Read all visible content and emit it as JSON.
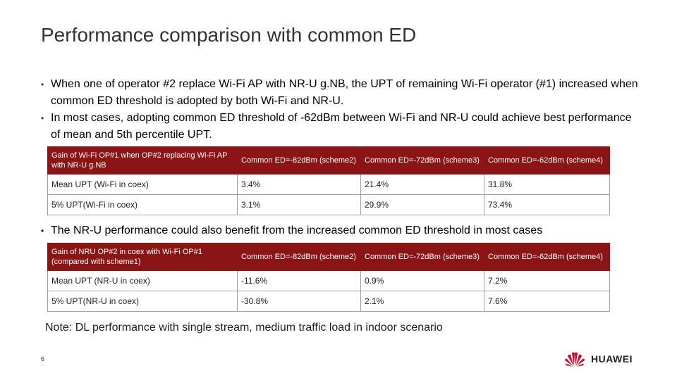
{
  "title": "Performance comparison with common ED",
  "bullets": [
    "When one of operator #2 replace Wi-Fi AP with NR-U g.NB, the UPT of remaining Wi-Fi operator (#1) increased when common ED threshold is adopted by both Wi-Fi and NR-U.",
    "In most cases, adopting common ED threshold of -62dBm between Wi-Fi and NR-U could achieve best performance of mean and 5th percentile UPT."
  ],
  "table1": {
    "headers": [
      "Gain of Wi-Fi OP#1 when OP#2 replacing Wi-Fi AP with NR-U g.NB",
      "Common ED=-82dBm (scheme2)",
      "Common ED=-72dBm (scheme3)",
      "Common ED=-62dBm (scheme4)"
    ],
    "rows": [
      [
        "Mean UPT (Wi-Fi in coex)",
        "3.4%",
        "21.4%",
        "31.8%"
      ],
      [
        "5% UPT(Wi-Fi in coex)",
        "3.1%",
        "29.9%",
        "73.4%"
      ]
    ]
  },
  "bullet3": "The NR-U performance could also benefit from the increased common ED threshold in most cases",
  "table2": {
    "headers": [
      "Gain of NRU OP#2 in coex with Wi-Fi OP#1 (compared with scheme1)",
      "Common ED=-82dBm (scheme2)",
      "Common ED=-72dBm (scheme3)",
      "Common ED=-62dBm (scheme4)"
    ],
    "rows": [
      [
        "Mean UPT (NR-U in coex)",
        "-11.6%",
        "0.9%",
        "7.2%"
      ],
      [
        "5% UPT(NR-U in coex)",
        "-30.8%",
        "2.1%",
        "7.6%"
      ]
    ]
  },
  "note": "Note: DL performance with single stream, medium traffic load in indoor scenario",
  "page_number": "6",
  "logo": {
    "text": "HUAWEI",
    "color": "#cf0a2c"
  },
  "colors": {
    "header_bg": "#8b1414",
    "title": "#333333"
  }
}
